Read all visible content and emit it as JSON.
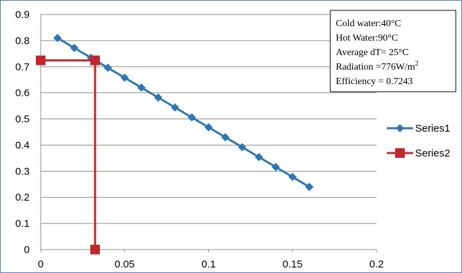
{
  "chart_data": {
    "type": "scatter",
    "x_ticks": [
      "0",
      "0.05",
      "0.1",
      "0.15",
      "0.2"
    ],
    "y_ticks": [
      "0",
      "0.1",
      "0.2",
      "0.3",
      "0.4",
      "0.5",
      "0.6",
      "0.7",
      "0.8",
      "0.9"
    ],
    "xlim": [
      0,
      0.2
    ],
    "ylim": [
      0,
      0.9
    ],
    "grid": "horizontal",
    "legend_position": "right",
    "series": [
      {
        "name": "Series1",
        "color": "#2e75b6",
        "marker": "diamond",
        "x": [
          0.01,
          0.02,
          0.03,
          0.04,
          0.05,
          0.06,
          0.07,
          0.08,
          0.09,
          0.1,
          0.11,
          0.12,
          0.13,
          0.14,
          0.15,
          0.16
        ],
        "y": [
          0.81,
          0.772,
          0.734,
          0.696,
          0.658,
          0.62,
          0.582,
          0.544,
          0.506,
          0.468,
          0.43,
          0.392,
          0.354,
          0.316,
          0.278,
          0.24
        ]
      },
      {
        "name": "Series2",
        "color": "#c0272d",
        "marker": "square",
        "x": [
          0,
          0.0324,
          0.0324
        ],
        "y": [
          0.7243,
          0.7243,
          0
        ]
      }
    ],
    "annotation": [
      {
        "text": "Cold water:40°C",
        "sup": ""
      },
      {
        "text": "Hot Water:90°C",
        "sup": ""
      },
      {
        "text": "Average dT= 25°C",
        "sup": ""
      },
      {
        "text": "Radiation =776W/m",
        "sup": "2"
      },
      {
        "text": "Efficiency = 0.7243",
        "sup": ""
      }
    ]
  }
}
